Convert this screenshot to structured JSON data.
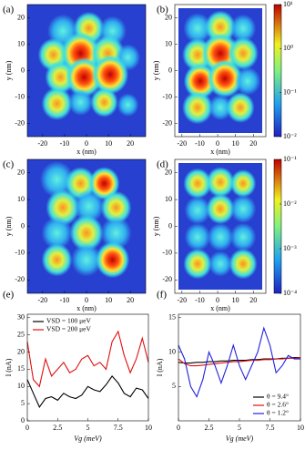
{
  "chart_data": [
    {
      "type": "heatmap",
      "label": "(a)",
      "xlabel": "x (nm)",
      "ylabel": "y (nm)",
      "xlim": [
        -27,
        27
      ],
      "ylim": [
        -25,
        25
      ],
      "xticks": [
        -20,
        -10,
        0,
        10,
        20
      ],
      "yticks": [
        -20,
        -10,
        0,
        10,
        20
      ]
    },
    {
      "type": "heatmap",
      "label": "(b)",
      "xlabel": "x (nm)",
      "ylabel": "y (nm)",
      "xlim": [
        -24,
        27
      ],
      "ylim": [
        -25,
        25
      ],
      "xticks": [
        -20,
        -10,
        0,
        10,
        20
      ],
      "yticks": [
        -20,
        -10,
        0,
        10,
        20
      ],
      "colorbar": {
        "log": true,
        "lim": [
          0.01,
          10
        ],
        "ticks": [
          {
            "value": 10,
            "label": "10¹"
          },
          {
            "value": 1,
            "label": "10⁰"
          },
          {
            "value": 0.1,
            "label": "10⁻¹"
          },
          {
            "value": 0.01,
            "label": "10⁻²"
          }
        ]
      }
    },
    {
      "type": "heatmap",
      "label": "(c)",
      "xlabel": "x (nm)",
      "ylabel": "y (nm)",
      "xlim": [
        -27,
        27
      ],
      "ylim": [
        -25,
        25
      ],
      "xticks": [
        -20,
        -10,
        0,
        10,
        20
      ],
      "yticks": [
        -20,
        -10,
        0,
        10,
        20
      ]
    },
    {
      "type": "heatmap",
      "label": "(d)",
      "xlabel": "x (nm)",
      "ylabel": "y (nm)",
      "xlim": [
        -24,
        27
      ],
      "ylim": [
        -25,
        25
      ],
      "xticks": [
        -20,
        -10,
        0,
        10,
        20
      ],
      "yticks": [
        -20,
        -10,
        0,
        10,
        20
      ],
      "colorbar": {
        "log": true,
        "lim": [
          0.0001,
          0.1
        ],
        "ticks": [
          {
            "value": 0.1,
            "label": "10⁻¹"
          },
          {
            "value": 0.01,
            "label": "10⁻²"
          },
          {
            "value": 0.001,
            "label": "10⁻³"
          },
          {
            "value": 0.0001,
            "label": "10⁻⁴"
          }
        ]
      }
    },
    {
      "type": "line",
      "label": "(e)",
      "xlabel": "Vg (meV)",
      "ylabel": "I (nA)",
      "xlim": [
        0,
        10
      ],
      "ylim": [
        0,
        31
      ],
      "xticks": [
        0,
        2.5,
        5,
        7.5,
        10
      ],
      "yticks": [
        0,
        5,
        10,
        15,
        20,
        25,
        30
      ],
      "legend": "top-left",
      "x": [
        0,
        0.5,
        1,
        1.5,
        2,
        2.5,
        3,
        3.5,
        4,
        4.5,
        5,
        5.5,
        6,
        6.5,
        7,
        7.5,
        8,
        8.5,
        9,
        9.5,
        10
      ],
      "series": [
        {
          "name": "VSD = 100 μeV",
          "color": "#000000",
          "values": [
            12,
            8,
            4,
            6.5,
            7,
            6,
            8,
            7,
            6.5,
            7.5,
            10,
            9,
            8.5,
            10.5,
            13,
            11,
            8,
            7,
            9.5,
            9,
            6.5
          ]
        },
        {
          "name": "VSD = 200 μeV",
          "color": "#e01010",
          "values": [
            23,
            12,
            10,
            18,
            13,
            15,
            17,
            14,
            15,
            18,
            19,
            16,
            17,
            15,
            23,
            26,
            19,
            14,
            18,
            24,
            17
          ]
        }
      ]
    },
    {
      "type": "line",
      "label": "(f)",
      "xlabel": "Vg (meV)",
      "ylabel": "I (nA)",
      "xlim": [
        0,
        10
      ],
      "ylim": [
        0,
        15.5
      ],
      "xticks": [
        0,
        2.5,
        5,
        7.5,
        10
      ],
      "yticks": [
        5,
        10,
        15
      ],
      "legend": "bottom-right",
      "x": [
        0,
        0.5,
        1,
        1.5,
        2,
        2.5,
        3,
        3.5,
        4,
        4.5,
        5,
        5.5,
        6,
        6.5,
        7,
        7.5,
        8,
        8.5,
        9,
        9.5,
        10
      ],
      "series": [
        {
          "name": "θ = 9.4°",
          "color": "#000000",
          "values": [
            8.5,
            8.4,
            8.4,
            8.5,
            8.5,
            8.6,
            8.6,
            8.7,
            8.7,
            8.8,
            8.8,
            8.8,
            8.9,
            8.9,
            9,
            9,
            9,
            9.1,
            9.1,
            9.2,
            9.2
          ]
        },
        {
          "name": "θ = 2.6°",
          "color": "#e01010",
          "values": [
            9,
            8.3,
            8,
            8,
            8.1,
            8.2,
            8.3,
            8.4,
            8.5,
            8.6,
            8.6,
            8.7,
            8.8,
            8.8,
            8.9,
            8.9,
            9,
            9,
            9.1,
            9.1,
            9.2
          ]
        },
        {
          "name": "θ = 1.2°",
          "color": "#2020e0",
          "values": [
            11,
            9,
            5,
            3.5,
            6,
            10,
            8,
            5.5,
            8,
            11,
            8,
            6,
            8,
            10,
            13.5,
            11,
            7,
            8,
            9.5,
            9,
            9
          ]
        }
      ]
    }
  ]
}
